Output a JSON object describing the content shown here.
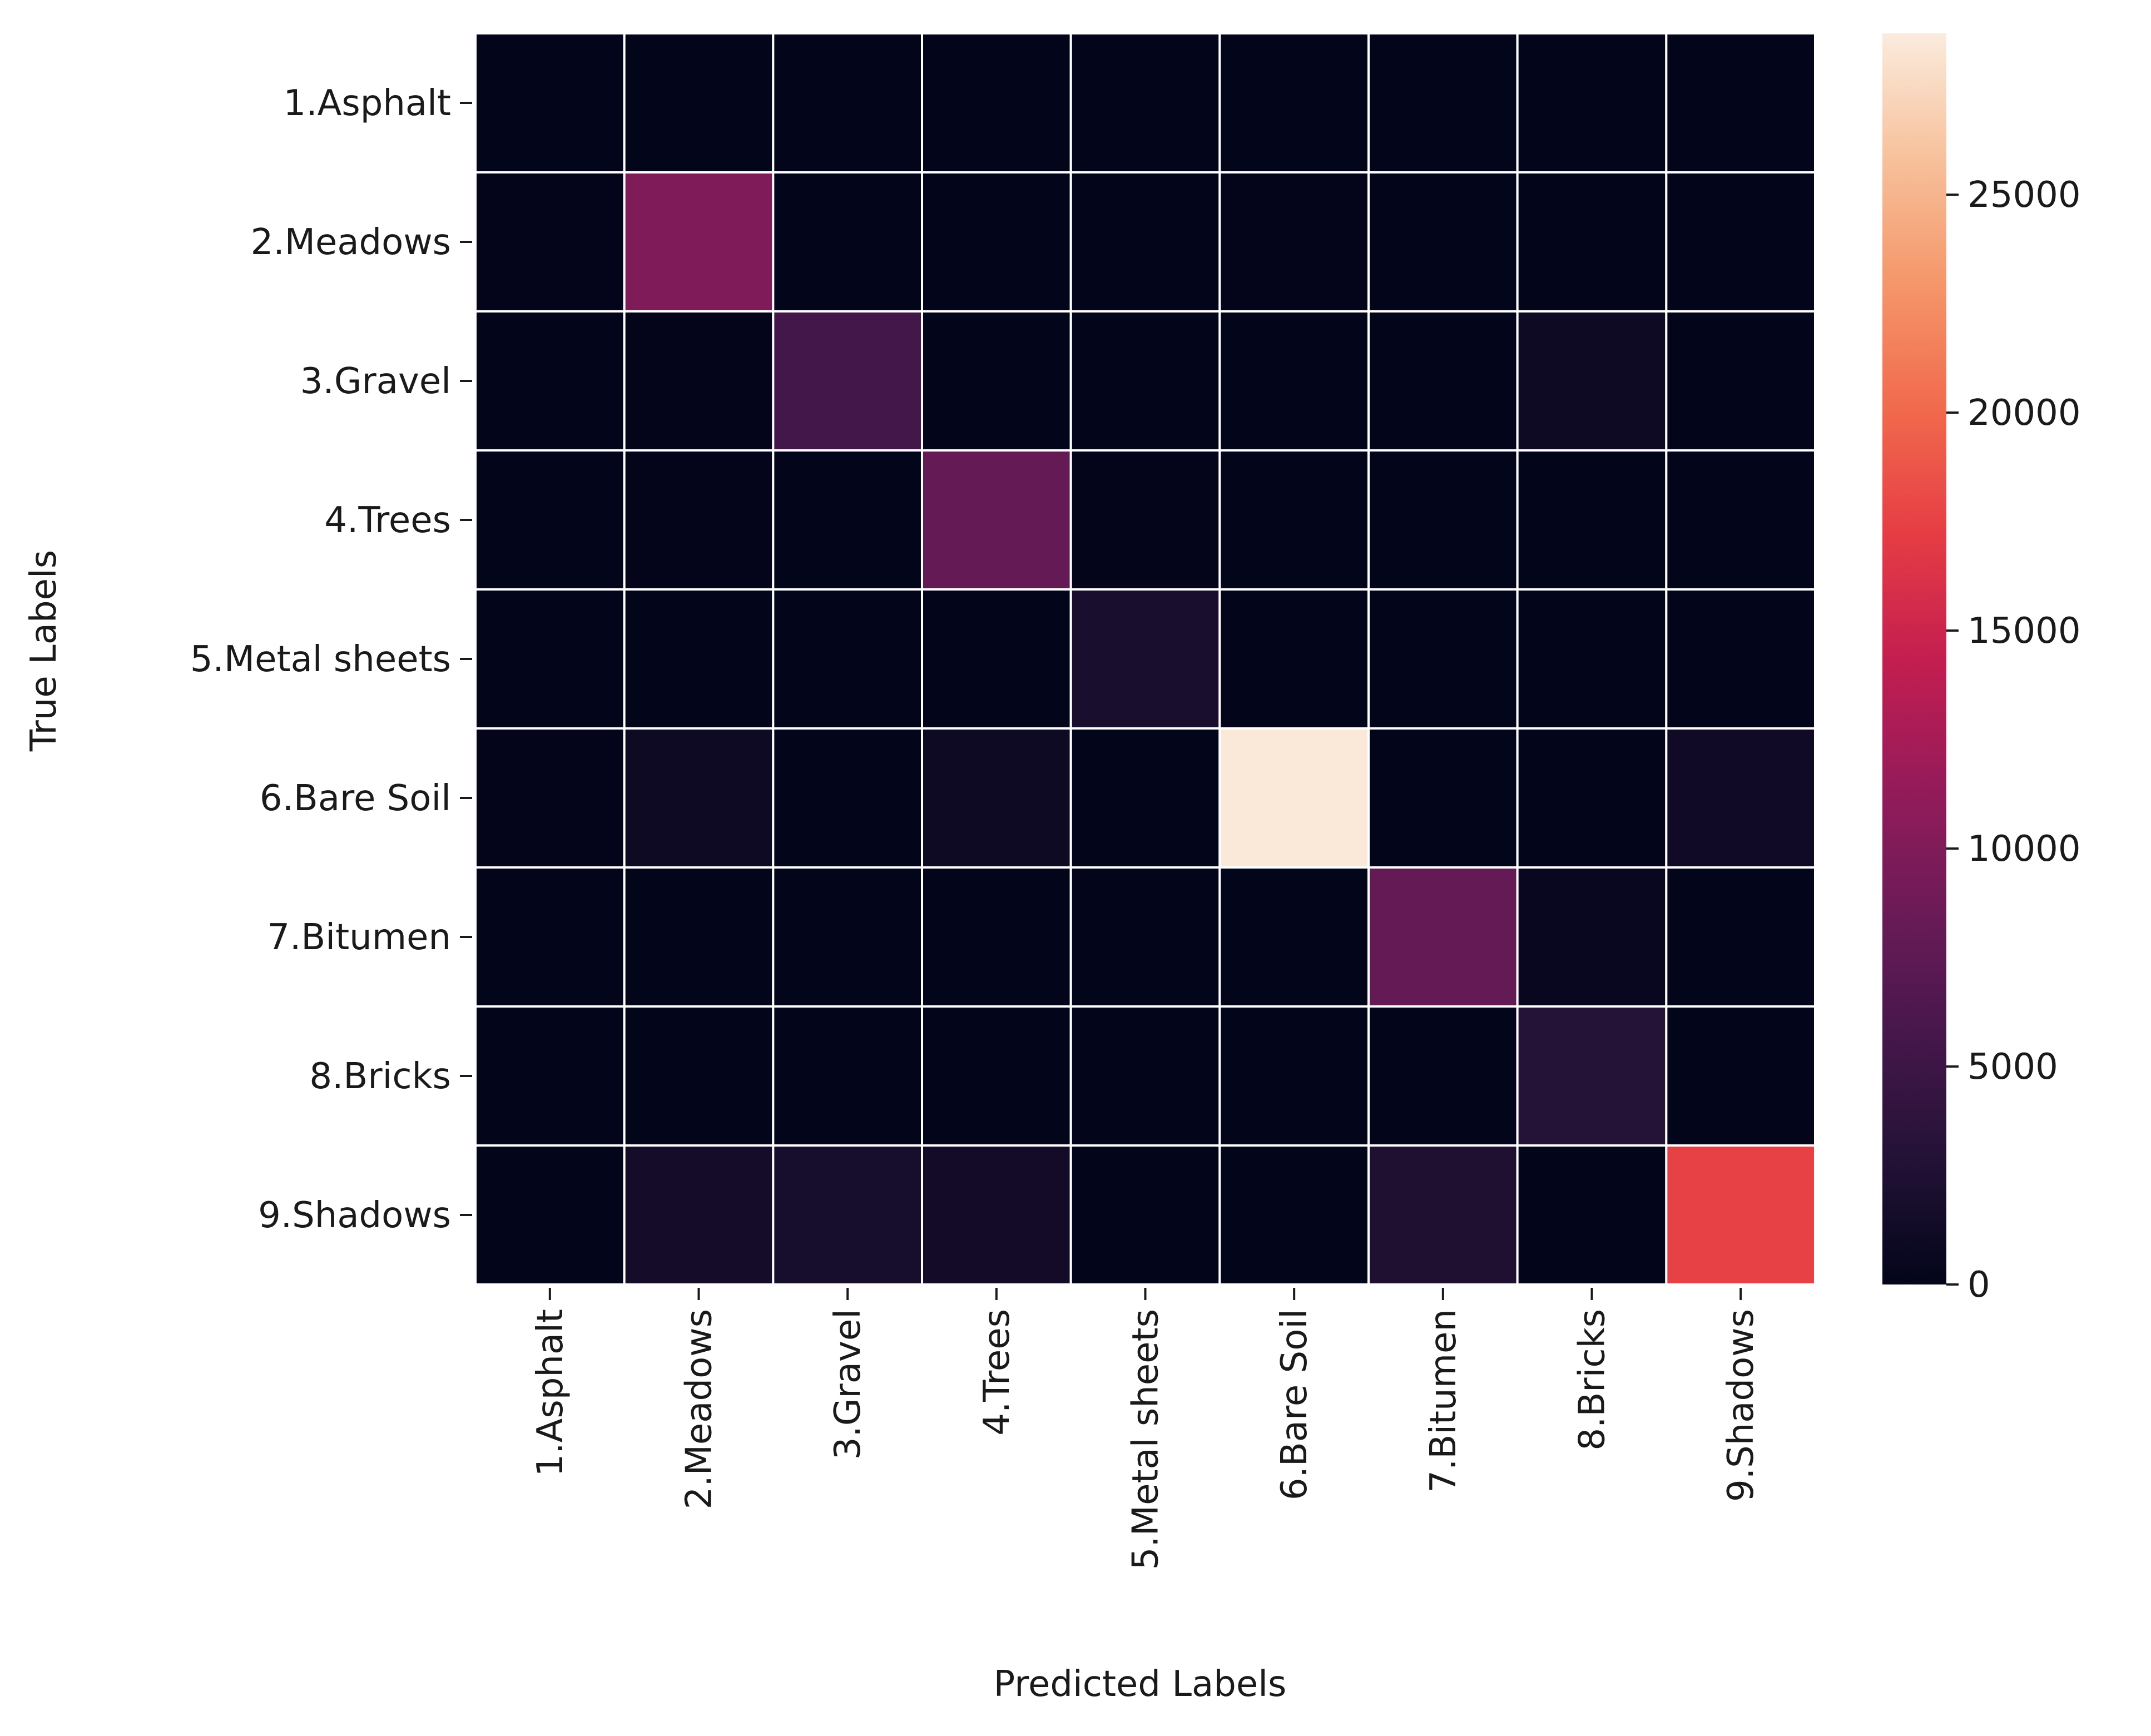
{
  "chart_data": {
    "type": "heatmap",
    "title": "",
    "xlabel": "Predicted Labels",
    "ylabel": "True Labels",
    "x_categories": [
      "1.Asphalt",
      "2.Meadows",
      "3.Gravel",
      "4.Trees",
      "5.Metal sheets",
      "6.Bare Soil",
      "7.Bitumen",
      "8.Bricks",
      "9.Shadows"
    ],
    "y_categories": [
      "1.Asphalt",
      "2.Meadows",
      "3.Gravel",
      "4.Trees",
      "5.Metal sheets",
      "6.Bare Soil",
      "7.Bitumen",
      "8.Bricks",
      "9.Shadows"
    ],
    "matrix": [
      [
        0,
        0,
        0,
        0,
        0,
        0,
        0,
        0,
        0
      ],
      [
        100,
        10000,
        0,
        0,
        0,
        100,
        0,
        0,
        0
      ],
      [
        0,
        100,
        5500,
        0,
        0,
        0,
        0,
        1000,
        0
      ],
      [
        0,
        100,
        0,
        8000,
        100,
        0,
        0,
        0,
        0
      ],
      [
        0,
        0,
        0,
        0,
        2000,
        0,
        0,
        0,
        0
      ],
      [
        100,
        1000,
        0,
        1000,
        0,
        28500,
        0,
        0,
        1200
      ],
      [
        0,
        0,
        0,
        0,
        0,
        0,
        8000,
        500,
        0
      ],
      [
        0,
        0,
        0,
        0,
        0,
        0,
        0,
        3000,
        0
      ],
      [
        0,
        1600,
        1800,
        1400,
        0,
        0,
        2500,
        0,
        17500
      ]
    ],
    "colorbar": {
      "colormap": "rocket",
      "range": [
        0,
        28700
      ],
      "ticks": [
        0,
        5000,
        10000,
        15000,
        20000,
        25000
      ],
      "tick_labels": [
        "0",
        "5000",
        "10000",
        "15000",
        "20000",
        "25000"
      ]
    },
    "grid": true,
    "legend": "colorbar-right"
  }
}
